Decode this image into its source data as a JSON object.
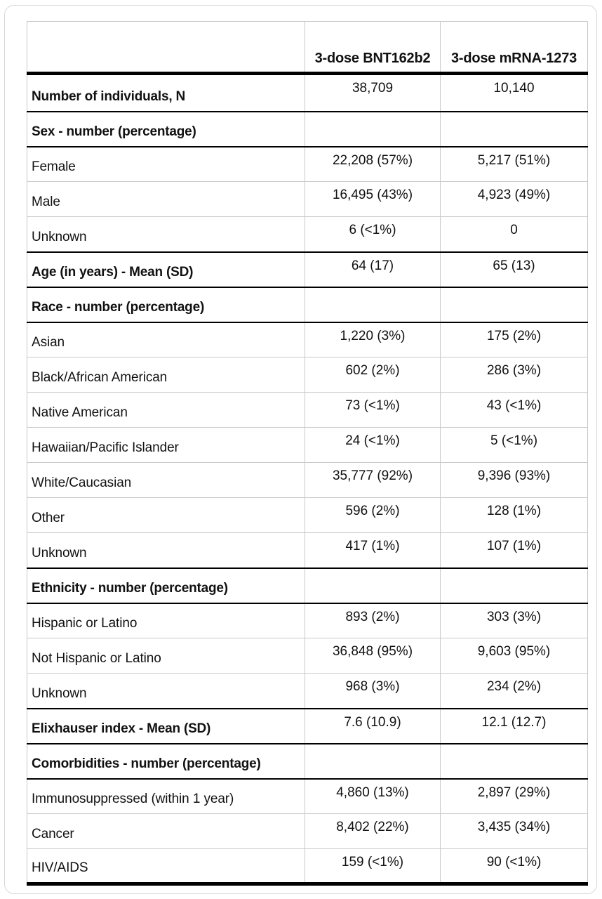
{
  "table": {
    "header": {
      "col0": "",
      "col1": "3-dose BNT162b2",
      "col2": "3-dose mRNA-1273"
    },
    "rows": [
      {
        "label": "Number of individuals, N",
        "bold": true,
        "values": [
          "38,709",
          "10,140"
        ]
      },
      {
        "label": "Sex - number (percentage)",
        "bold": true,
        "values": [
          "",
          ""
        ]
      },
      {
        "label": "Female",
        "bold": false,
        "values": [
          "22,208 (57%)",
          "5,217 (51%)"
        ]
      },
      {
        "label": "Male",
        "bold": false,
        "values": [
          "16,495 (43%)",
          "4,923 (49%)"
        ]
      },
      {
        "label": "Unknown",
        "bold": false,
        "values": [
          "6 (<1%)",
          "0"
        ]
      },
      {
        "label": "Age (in years) - Mean (SD)",
        "bold": true,
        "values": [
          "64 (17)",
          "65 (13)"
        ]
      },
      {
        "label": "Race - number (percentage)",
        "bold": true,
        "values": [
          "",
          ""
        ]
      },
      {
        "label": "Asian",
        "bold": false,
        "values": [
          "1,220 (3%)",
          "175 (2%)"
        ]
      },
      {
        "label": "Black/African American",
        "bold": false,
        "values": [
          "602 (2%)",
          "286 (3%)"
        ]
      },
      {
        "label": "Native American",
        "bold": false,
        "values": [
          "73 (<1%)",
          "43 (<1%)"
        ]
      },
      {
        "label": "Hawaiian/Pacific Islander",
        "bold": false,
        "values": [
          "24 (<1%)",
          "5 (<1%)"
        ]
      },
      {
        "label": "White/Caucasian",
        "bold": false,
        "values": [
          "35,777 (92%)",
          "9,396 (93%)"
        ]
      },
      {
        "label": "Other",
        "bold": false,
        "values": [
          "596 (2%)",
          "128 (1%)"
        ]
      },
      {
        "label": "Unknown",
        "bold": false,
        "values": [
          "417 (1%)",
          "107 (1%)"
        ]
      },
      {
        "label": "Ethnicity - number (percentage)",
        "bold": true,
        "values": [
          "",
          ""
        ]
      },
      {
        "label": "Hispanic or Latino",
        "bold": false,
        "values": [
          "893 (2%)",
          "303 (3%)"
        ]
      },
      {
        "label": "Not Hispanic or Latino",
        "bold": false,
        "values": [
          "36,848 (95%)",
          "9,603 (95%)"
        ]
      },
      {
        "label": "Unknown",
        "bold": false,
        "values": [
          "968 (3%)",
          "234 (2%)"
        ]
      },
      {
        "label": "Elixhauser index - Mean (SD)",
        "bold": true,
        "values": [
          "7.6 (10.9)",
          "12.1 (12.7)"
        ]
      },
      {
        "label": "Comorbidities - number (percentage)",
        "bold": true,
        "values": [
          "",
          ""
        ]
      },
      {
        "label": "Immunosuppressed (within 1 year)",
        "bold": false,
        "values": [
          "4,860 (13%)",
          "2,897 (29%)"
        ]
      },
      {
        "label": "Cancer",
        "bold": false,
        "values": [
          "8,402 (22%)",
          "3,435 (34%)"
        ]
      },
      {
        "label": "HIV/AIDS",
        "bold": false,
        "values": [
          "159 (<1%)",
          "90 (<1%)"
        ]
      }
    ],
    "colors": {
      "section_border": "#000000",
      "grid_border": "#c9c9c9",
      "text": "#111111",
      "card_border": "#d7d7d7",
      "background": "#ffffff"
    }
  }
}
